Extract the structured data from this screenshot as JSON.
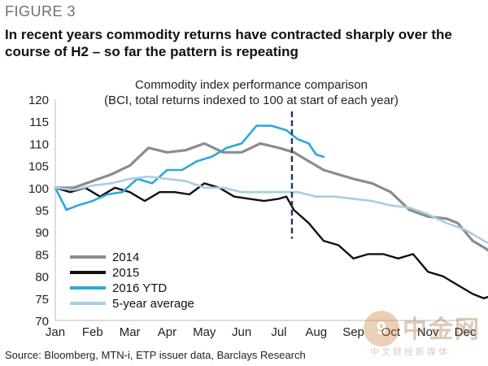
{
  "figure_label": "FIGURE 3",
  "headline": "In recent years commodity returns have contracted sharply over the course of H2 – so far the pattern is repeating",
  "source": "Source: Bloomberg, MTN-i, ETP issuer data, Barclays Research",
  "watermark": {
    "logo_text": "中金网",
    "tagline": "中文财经新媒体",
    "mark": "9"
  },
  "chart_data": {
    "type": "line",
    "title": "Commodity index performance comparison",
    "subtitle": "(BCI, total returns indexed to 100 at start of each year)",
    "xlabel": "",
    "ylabel": "",
    "categories": [
      "Jan",
      "Feb",
      "Mar",
      "Apr",
      "May",
      "Jun",
      "Jul",
      "Aug",
      "Sep",
      "Oct",
      "Nov",
      "Dec"
    ],
    "ylim": [
      70,
      120
    ],
    "yticks": [
      "120",
      "115",
      "110",
      "105",
      "100",
      "95",
      "90",
      "85",
      "80",
      "75",
      "70"
    ],
    "annotation": {
      "type": "vertical-dashed-line",
      "x": 6.35
    },
    "legend_position": "bottom-left",
    "series": [
      {
        "name": "2014",
        "color": "#8c8c8c",
        "points": [
          [
            0,
            100
          ],
          [
            0.5,
            100
          ],
          [
            1,
            101.5
          ],
          [
            1.5,
            103
          ],
          [
            2,
            105
          ],
          [
            2.5,
            109
          ],
          [
            3,
            108
          ],
          [
            3.5,
            108.5
          ],
          [
            4,
            110
          ],
          [
            4.5,
            108
          ],
          [
            5,
            108
          ],
          [
            5.5,
            110
          ],
          [
            6,
            109
          ],
          [
            6.4,
            108
          ],
          [
            6.8,
            106
          ],
          [
            7.2,
            104
          ],
          [
            7.6,
            103
          ],
          [
            8,
            102
          ],
          [
            8.5,
            101
          ],
          [
            9,
            99
          ],
          [
            9.5,
            95
          ],
          [
            10,
            93.5
          ],
          [
            10.5,
            93
          ],
          [
            10.8,
            92
          ],
          [
            11.2,
            88
          ],
          [
            11.6,
            86
          ],
          [
            11.85,
            83.5
          ]
        ]
      },
      {
        "name": "2015",
        "color": "#111111",
        "points": [
          [
            0,
            100
          ],
          [
            0.4,
            99
          ],
          [
            0.8,
            100
          ],
          [
            1.2,
            98
          ],
          [
            1.6,
            100
          ],
          [
            2,
            99
          ],
          [
            2.4,
            97
          ],
          [
            2.8,
            99
          ],
          [
            3.2,
            99
          ],
          [
            3.6,
            98.5
          ],
          [
            4,
            101
          ],
          [
            4.4,
            100
          ],
          [
            4.8,
            98
          ],
          [
            5.2,
            97.5
          ],
          [
            5.6,
            97
          ],
          [
            6,
            97.5
          ],
          [
            6.2,
            98
          ],
          [
            6.4,
            95
          ],
          [
            6.8,
            92
          ],
          [
            7.2,
            88
          ],
          [
            7.6,
            87
          ],
          [
            8,
            84
          ],
          [
            8.4,
            85
          ],
          [
            8.8,
            85
          ],
          [
            9.2,
            84
          ],
          [
            9.6,
            85
          ],
          [
            10,
            81
          ],
          [
            10.4,
            80
          ],
          [
            10.8,
            78
          ],
          [
            11.2,
            76
          ],
          [
            11.5,
            75
          ],
          [
            11.85,
            76
          ]
        ]
      },
      {
        "name": "2016 YTD",
        "color": "#2fa8d8",
        "points": [
          [
            0,
            100
          ],
          [
            0.3,
            95
          ],
          [
            0.6,
            96
          ],
          [
            1,
            97
          ],
          [
            1.4,
            98.5
          ],
          [
            1.8,
            99
          ],
          [
            2.2,
            102
          ],
          [
            2.6,
            101
          ],
          [
            3,
            104
          ],
          [
            3.4,
            104
          ],
          [
            3.8,
            106
          ],
          [
            4.2,
            107
          ],
          [
            4.6,
            109
          ],
          [
            5,
            110
          ],
          [
            5.4,
            114
          ],
          [
            5.8,
            114
          ],
          [
            6.2,
            113
          ],
          [
            6.5,
            111
          ],
          [
            6.8,
            110
          ],
          [
            7,
            107.5
          ],
          [
            7.2,
            107
          ]
        ]
      },
      {
        "name": "5-year average",
        "color": "#a9cedd",
        "points": [
          [
            0,
            100
          ],
          [
            0.5,
            99.5
          ],
          [
            1,
            100.5
          ],
          [
            1.5,
            101
          ],
          [
            2,
            102
          ],
          [
            2.5,
            102.5
          ],
          [
            3,
            102
          ],
          [
            3.5,
            101.5
          ],
          [
            4,
            100
          ],
          [
            4.5,
            100
          ],
          [
            5,
            99
          ],
          [
            5.5,
            99
          ],
          [
            6,
            99
          ],
          [
            6.5,
            99
          ],
          [
            7,
            98
          ],
          [
            7.5,
            98
          ],
          [
            8,
            97.5
          ],
          [
            8.5,
            97
          ],
          [
            9,
            96
          ],
          [
            9.5,
            95.5
          ],
          [
            10,
            94
          ],
          [
            10.5,
            92
          ],
          [
            11,
            90.5
          ],
          [
            11.5,
            88
          ],
          [
            11.85,
            86.5
          ]
        ]
      }
    ]
  }
}
